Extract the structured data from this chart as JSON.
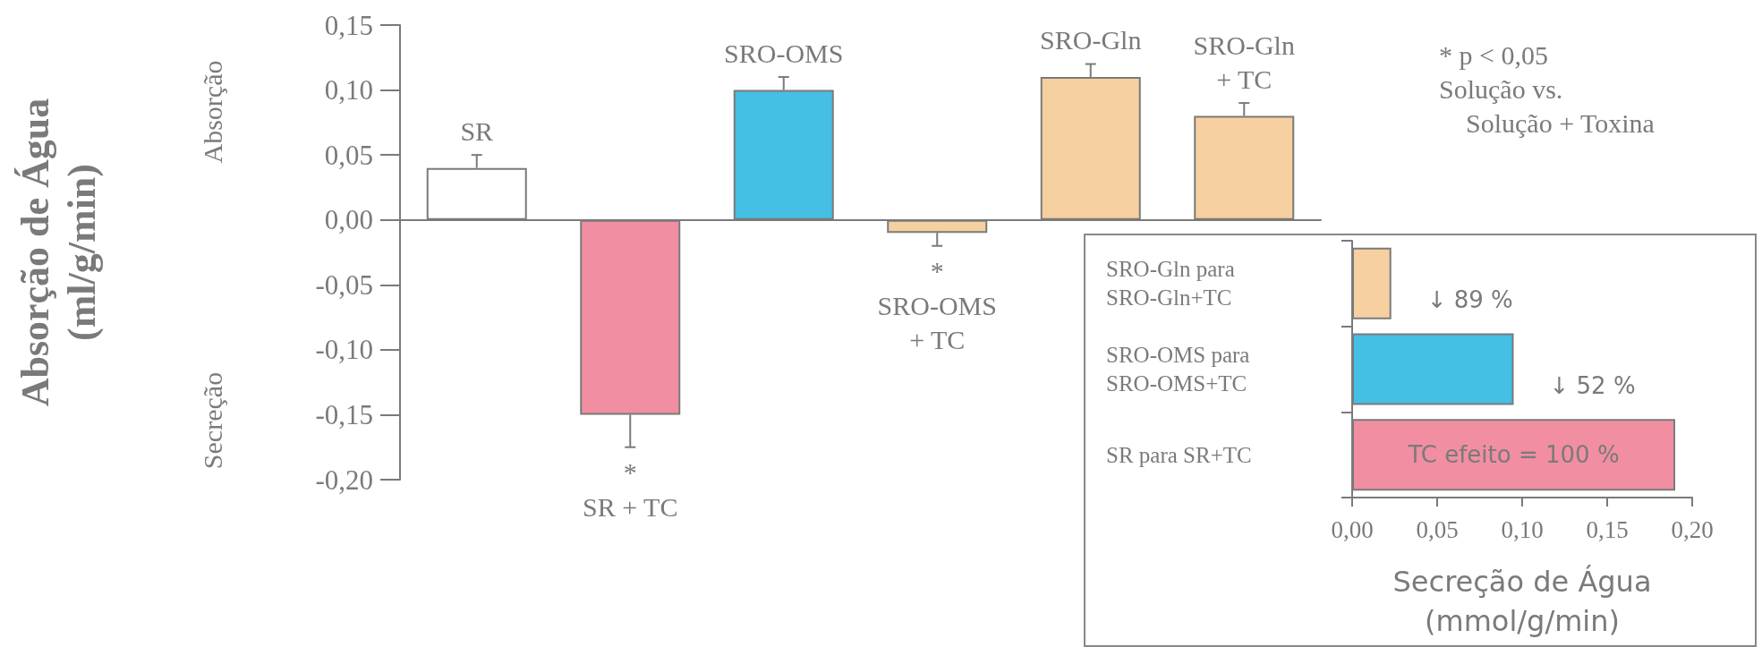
{
  "chart_data": [
    {
      "type": "bar",
      "ylabel": "Absorção de Água\n(ml/g/min)",
      "categories": [
        "SR",
        "SR + TC",
        "SRO-OMS",
        "SRO-OMS\n+ TC",
        "SRO-Gln",
        "SRO-Gln\n+ TC"
      ],
      "values": [
        0.04,
        -0.15,
        0.1,
        -0.01,
        0.11,
        0.08
      ],
      "errors": [
        0.01,
        0.025,
        0.01,
        0.01,
        0.01,
        0.01
      ],
      "colors": [
        "#ffffff",
        "#f28ea2",
        "#45bfe4",
        "#f6d0a0",
        "#f6d0a0",
        "#f6d0a0"
      ],
      "ylim": [
        -0.2,
        0.15
      ],
      "yticks": [
        {
          "value": -0.2,
          "label": "-0,20"
        },
        {
          "value": -0.15,
          "label": "-0,15"
        },
        {
          "value": -0.1,
          "label": "-0,10"
        },
        {
          "value": -0.05,
          "label": "-0,05"
        },
        {
          "value": 0,
          "label": "0,00"
        },
        {
          "value": 0.05,
          "label": "0,05"
        },
        {
          "value": 0.1,
          "label": "0,10"
        },
        {
          "value": 0.15,
          "label": "0,15"
        }
      ],
      "annotations": [
        "*",
        "*",
        "* p < 0,05\nSolução vs.\n    Solução + Toxina",
        "Absorção",
        "Secreção"
      ]
    },
    {
      "type": "bar",
      "xlabel": "Secreção de Água\n(mmol/g/min)",
      "categories": [
        "SRO-Gln para\nSRO-Gln+TC",
        "SRO-OMS para\nSRO-OMS+TC",
        "SR para SR+TC"
      ],
      "values": [
        0.023,
        0.095,
        0.19
      ],
      "annotations": [
        "↓ 89 %",
        "↓ 52 %",
        "TC efeito = 100 %"
      ],
      "colors": [
        "#f6d0a0",
        "#45bfe4",
        "#f28ea2"
      ],
      "orientation": "horizontal",
      "xlim": [
        0,
        0.2
      ],
      "xticks": [
        {
          "value": 0,
          "label": "0,00"
        },
        {
          "value": 0.05,
          "label": "0,05"
        },
        {
          "value": 0.1,
          "label": "0,10"
        },
        {
          "value": 0.15,
          "label": "0,15"
        },
        {
          "value": 0.2,
          "label": "0,20"
        }
      ],
      "tick_labels": true
    }
  ]
}
